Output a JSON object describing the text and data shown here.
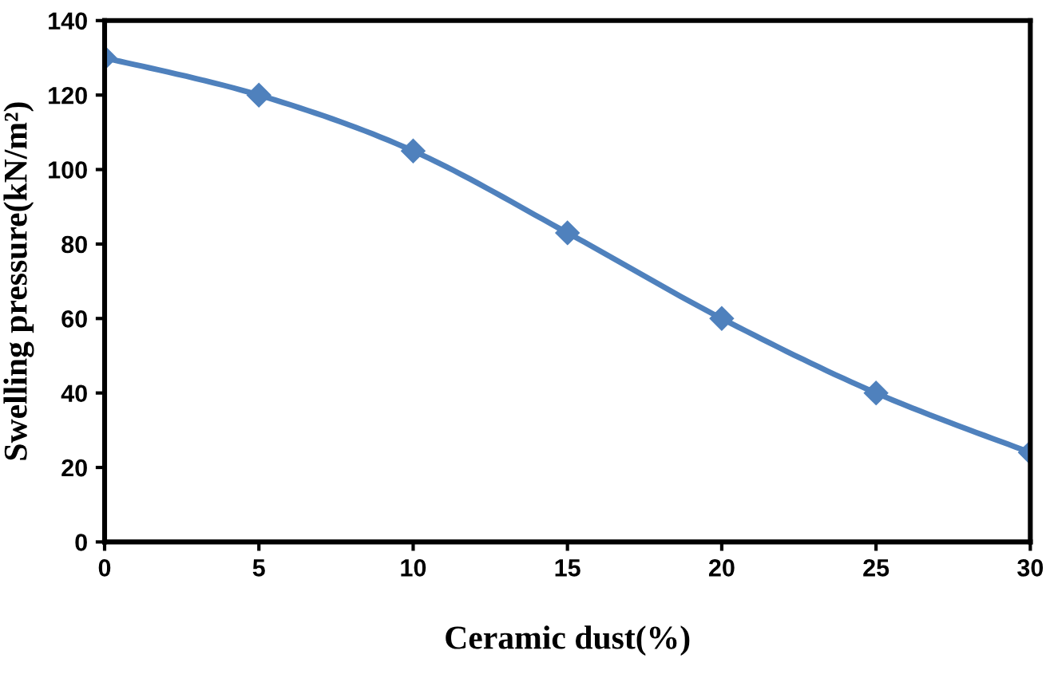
{
  "chart_data": {
    "type": "line",
    "xlabel": "Ceramic dust(%)",
    "ylabel": "Swelling pressure(kN/m²)",
    "x": [
      0,
      5,
      10,
      15,
      20,
      25,
      30
    ],
    "series": [
      {
        "color": "#4f81bd",
        "values": [
          130,
          120,
          105,
          83,
          60,
          40,
          24
        ]
      }
    ],
    "xlim": [
      0,
      30
    ],
    "xticks": [
      0,
      5,
      10,
      15,
      20,
      25,
      30
    ],
    "ylim": [
      0,
      140
    ],
    "yticks": [
      0,
      20,
      40,
      60,
      80,
      100,
      120,
      140
    ],
    "marker": "diamond",
    "line_style": "solid",
    "grid": false,
    "legend": false
  }
}
